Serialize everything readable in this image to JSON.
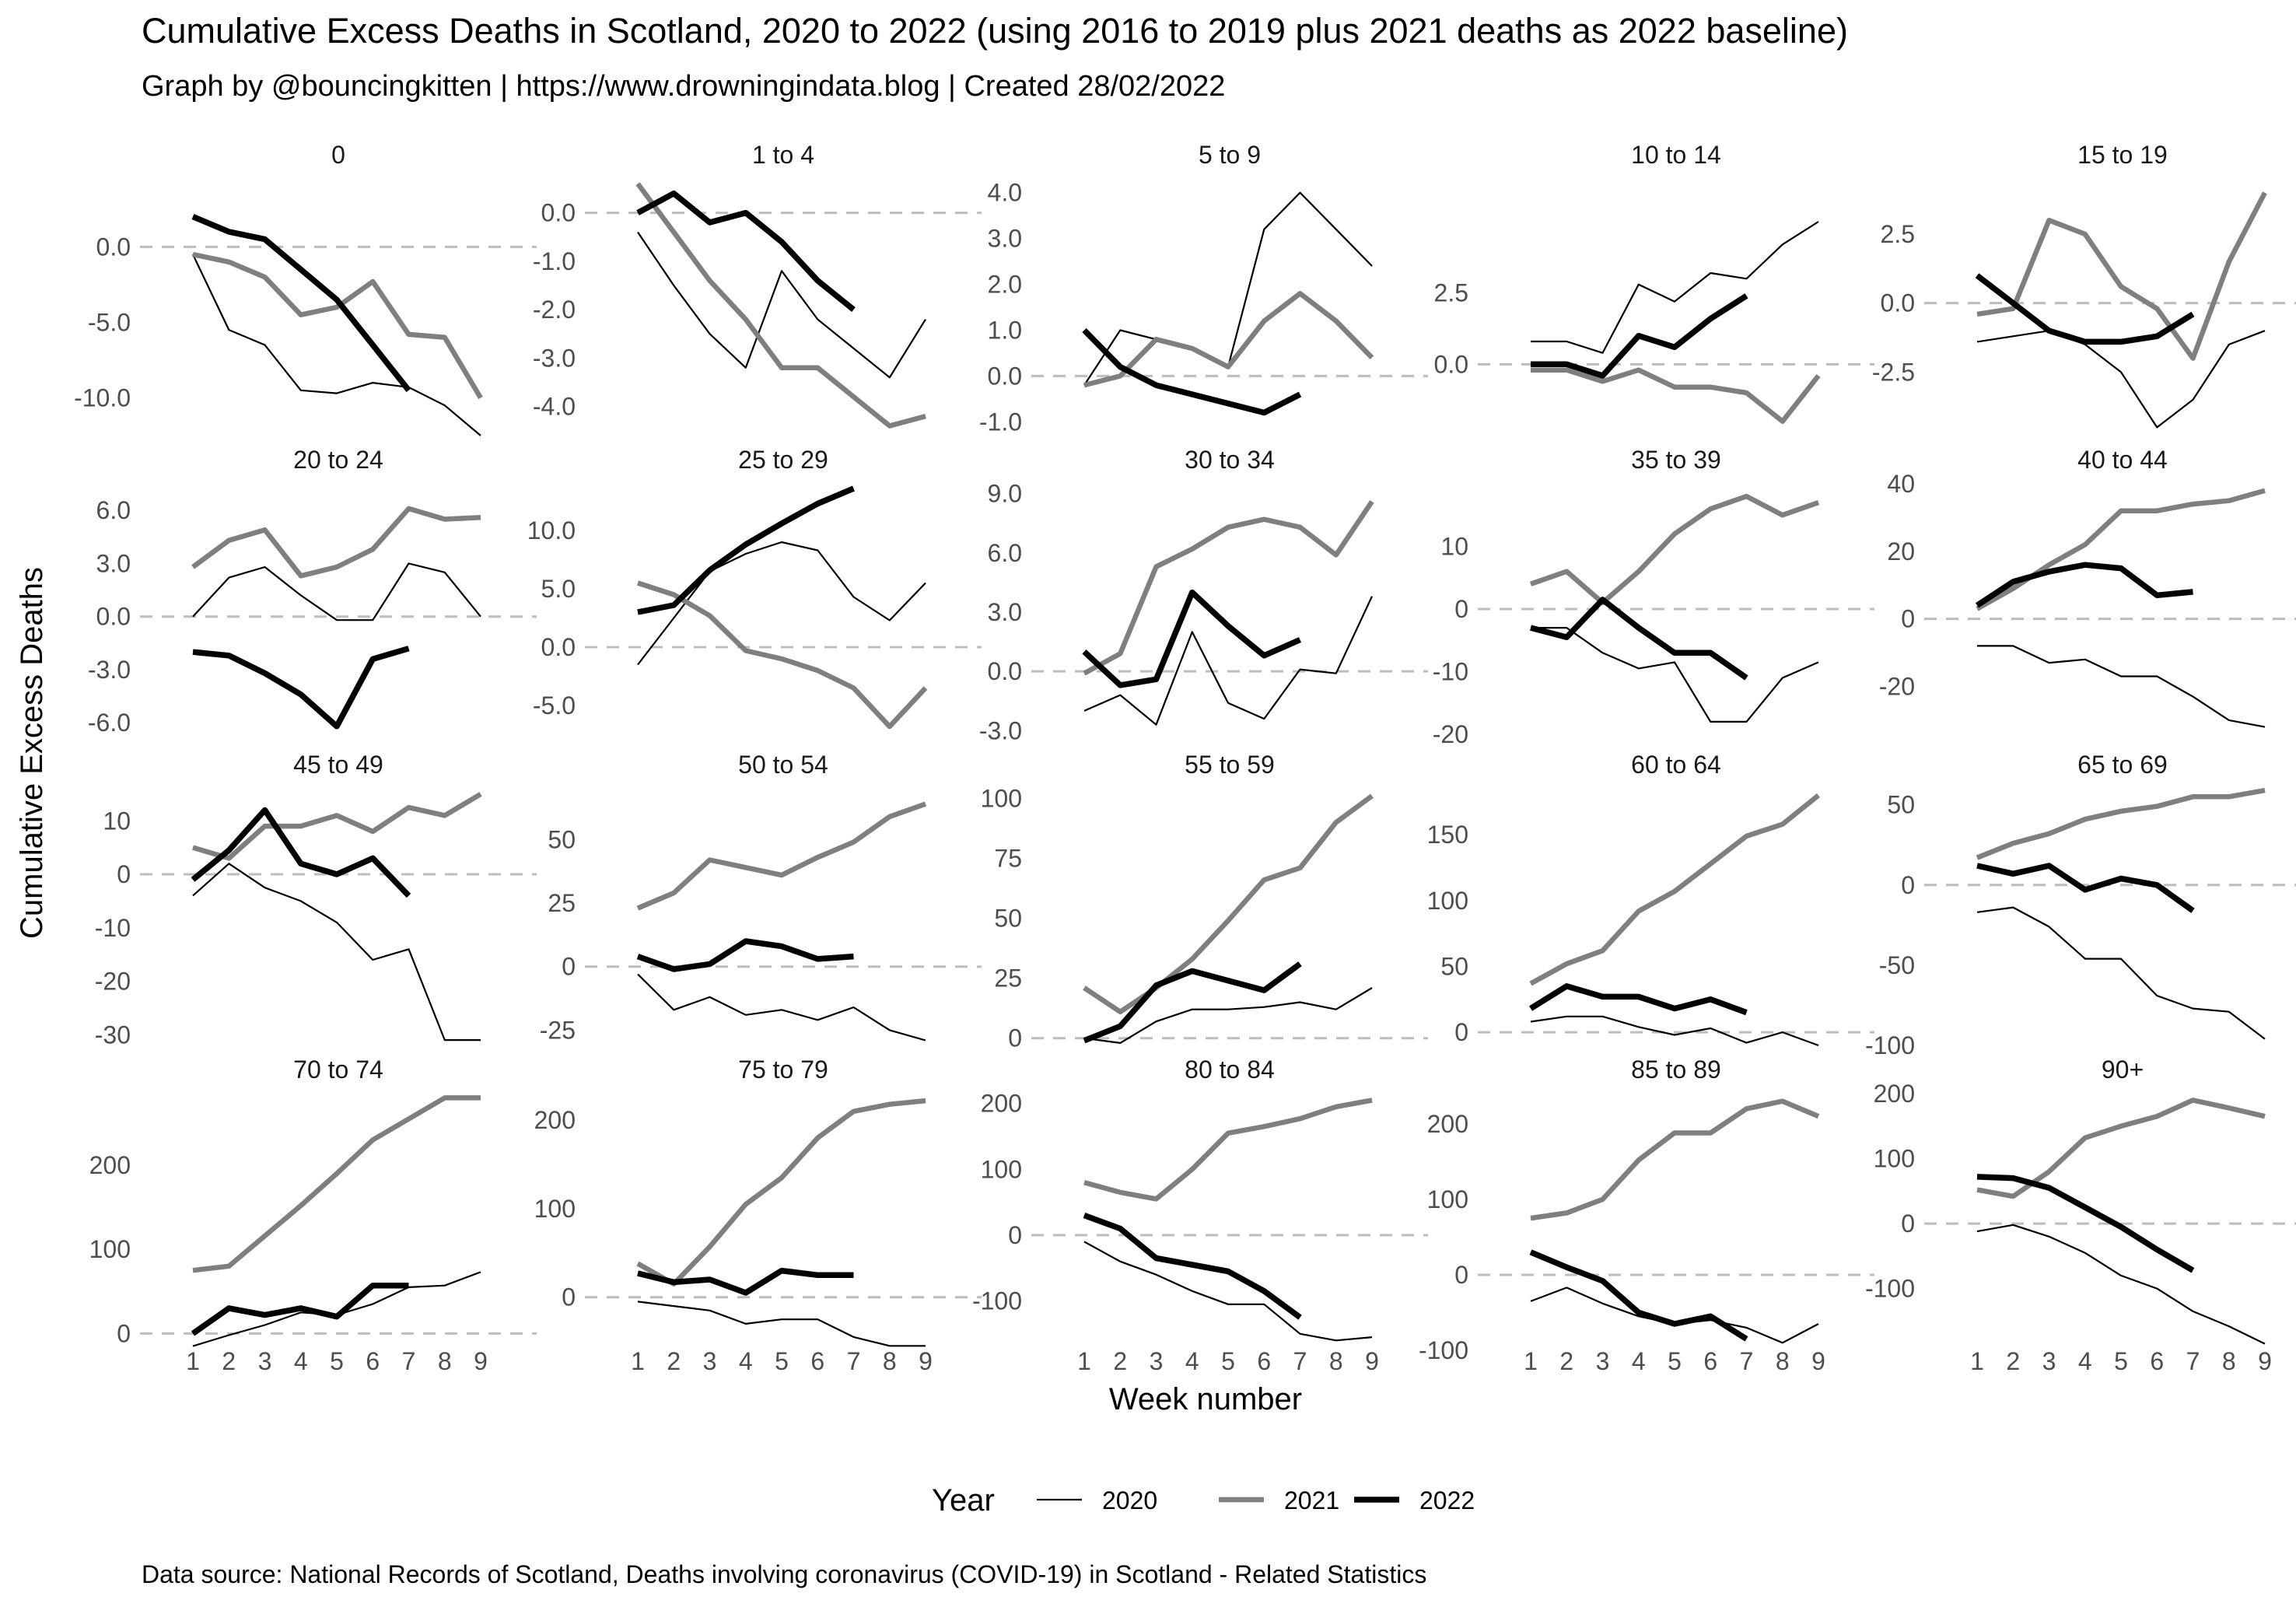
{
  "title": "Cumulative Excess Deaths in Scotland, 2020 to 2022 (using 2016 to 2019 plus 2021 deaths as 2022 baseline)",
  "subtitle": "Graph by @bouncingkitten | https://www.drowningindata.blog |  Created  28/02/2022",
  "caption": "Data source: National Records of Scotland, Deaths involving coronavirus (COVID-19) in Scotland - Related Statistics",
  "chart_data": {
    "type": "line",
    "xlabel": "Week number",
    "ylabel": "Cumulative Excess Deaths",
    "x": [
      1,
      2,
      3,
      4,
      5,
      6,
      7,
      8,
      9
    ],
    "legend": {
      "title": "Year",
      "position": "bottom",
      "entries": [
        "2020",
        "2021",
        "2022"
      ]
    },
    "series_colors": {
      "2020": "#000000",
      "2021": "#7f7f7f",
      "2022": "#000000"
    },
    "series_widths": {
      "2020": "thin",
      "2021": "thick",
      "2022": "thickest"
    },
    "grid": false,
    "reference_line": {
      "y": 0,
      "style": "dashed",
      "color": "#bdbdbd"
    },
    "panels": [
      {
        "label": "0",
        "ylim": [
          -12.5,
          4.5
        ],
        "yticks": [
          0,
          -5,
          -10
        ],
        "ytick_labels": [
          "0.0",
          "-5.0",
          "-10.0"
        ],
        "series": {
          "2020": [
            -0.5,
            -5.5,
            -6.5,
            -9.5,
            -9.7,
            -9,
            -9.3,
            -10.5,
            -12.5
          ],
          "2021": [
            -0.5,
            -1,
            -2,
            -4.5,
            -4,
            -2.3,
            -5.8,
            -6,
            -10
          ],
          "2022": [
            2,
            1,
            0.5,
            -1.5,
            -3.5,
            -6.5,
            -9.5
          ]
        }
      },
      {
        "label": "1 to 4",
        "ylim": [
          -4.6,
          0.7
        ],
        "yticks": [
          0,
          -1,
          -2,
          -3,
          -4
        ],
        "ytick_labels": [
          "0.0",
          "-1.0",
          "-2.0",
          "-3.0",
          "-4.0"
        ],
        "series": {
          "2020": [
            -0.4,
            -1.5,
            -2.5,
            -3.2,
            -1.2,
            -2.2,
            -2.8,
            -3.4,
            -2.2
          ],
          "2021": [
            0.6,
            -0.4,
            -1.4,
            -2.2,
            -3.2,
            -3.2,
            -3.8,
            -4.4,
            -4.2
          ],
          "2022": [
            0,
            0.4,
            -0.2,
            0,
            -0.6,
            -1.4,
            -2
          ]
        }
      },
      {
        "label": "5 to 9",
        "ylim": [
          -1.3,
          4.3
        ],
        "yticks": [
          4,
          3,
          2,
          1,
          0,
          -1
        ],
        "ytick_labels": [
          "4.0",
          "3.0",
          "2.0",
          "1.0",
          "0.0",
          "-1.0"
        ],
        "series": {
          "2020": [
            -0.2,
            1,
            0.8,
            0.6,
            0.2,
            3.2,
            4,
            3.2,
            2.4
          ],
          "2021": [
            -0.2,
            0,
            0.8,
            0.6,
            0.2,
            1.2,
            1.8,
            1.2,
            0.4
          ],
          "2022": [
            1,
            0.2,
            -0.2,
            -0.4,
            -0.6,
            -0.8,
            -0.4
          ]
        }
      },
      {
        "label": "10 to 14",
        "ylim": [
          -2.5,
          6.5
        ],
        "yticks": [
          2.5,
          0
        ],
        "ytick_labels": [
          "2.5",
          "0.0"
        ],
        "series": {
          "2020": [
            0.8,
            0.8,
            0.4,
            2.8,
            2.2,
            3.2,
            3,
            4.2,
            5
          ],
          "2021": [
            -0.2,
            -0.2,
            -0.6,
            -0.2,
            -0.8,
            -0.8,
            -1,
            -2,
            -0.4
          ],
          "2022": [
            0,
            0,
            -0.4,
            1,
            0.6,
            1.6,
            2.4
          ]
        }
      },
      {
        "label": "15 to 19",
        "ylim": [
          -4.8,
          4.5
        ],
        "yticks": [
          2.5,
          0,
          -2.5
        ],
        "ytick_labels": [
          "2.5",
          "0.0",
          "-2.5"
        ],
        "series": {
          "2020": [
            -1.4,
            -1.2,
            -1,
            -1.5,
            -2.5,
            -4.5,
            -3.5,
            -1.5,
            -1
          ],
          "2021": [
            -0.4,
            -0.2,
            3,
            2.5,
            0.6,
            -0.2,
            -2,
            1.5,
            4
          ],
          "2022": [
            1,
            0,
            -1,
            -1.4,
            -1.4,
            -1.2,
            -0.4
          ]
        }
      },
      {
        "label": "20 to 24",
        "ylim": [
          -7,
          7.5
        ],
        "yticks": [
          6,
          3,
          0,
          -3,
          -6
        ],
        "ytick_labels": [
          "6.0",
          "3.0",
          "0.0",
          "-3.0",
          "-6.0"
        ],
        "series": {
          "2020": [
            0,
            2.2,
            2.8,
            1.2,
            -0.2,
            -0.2,
            3,
            2.5,
            0
          ],
          "2021": [
            2.8,
            4.3,
            4.9,
            2.3,
            2.8,
            3.8,
            6.1,
            5.5,
            5.6
          ],
          "2022": [
            -2,
            -2.2,
            -3.2,
            -4.4,
            -6.2,
            -2.4,
            -1.8
          ]
        }
      },
      {
        "label": "25 to 29",
        "ylim": [
          -8,
          14
        ],
        "yticks": [
          10,
          5,
          0,
          -5
        ],
        "ytick_labels": [
          "10.0",
          "5.0",
          "0.0",
          "-5.0"
        ],
        "series": {
          "2020": [
            -1.5,
            2.5,
            6.5,
            8,
            9,
            8.3,
            4.3,
            2.3,
            5.5
          ],
          "2021": [
            5.5,
            4.5,
            2.7,
            -0.3,
            -1,
            -2,
            -3.5,
            -6.8,
            -3.5
          ],
          "2022": [
            3,
            3.6,
            6.6,
            8.8,
            10.6,
            12.3,
            13.6
          ]
        }
      },
      {
        "label": "30 to 34",
        "ylim": [
          -3.5,
          9.5
        ],
        "yticks": [
          9,
          6,
          3,
          0,
          -3
        ],
        "ytick_labels": [
          "9.0",
          "6.0",
          "3.0",
          "0.0",
          "-3.0"
        ],
        "series": {
          "2020": [
            -2,
            -1.2,
            -2.7,
            2,
            -1.6,
            -2.4,
            0.1,
            -0.1,
            3.8
          ],
          "2021": [
            -0.1,
            0.9,
            5.3,
            6.2,
            7.3,
            7.7,
            7.3,
            5.9,
            8.6
          ],
          "2022": [
            1,
            -0.7,
            -0.4,
            4,
            2.3,
            0.8,
            1.6
          ]
        }
      },
      {
        "label": "35 to 39",
        "ylim": [
          -21,
          20
        ],
        "yticks": [
          10,
          0,
          -10,
          -20
        ],
        "ytick_labels": [
          "10",
          "0",
          "-10",
          "-20"
        ],
        "series": {
          "2020": [
            -3,
            -3,
            -7,
            -9.5,
            -8.5,
            -18,
            -18,
            -11,
            -8.5
          ],
          "2021": [
            4,
            6,
            1,
            6,
            12,
            16,
            18,
            15,
            17
          ],
          "2022": [
            -3,
            -4.5,
            1.5,
            -3,
            -7,
            -7,
            -11
          ]
        }
      },
      {
        "label": "40 to 44",
        "ylim": [
          -36,
          40
        ],
        "yticks": [
          40,
          20,
          0,
          -20
        ],
        "ytick_labels": [
          "40",
          "20",
          "0",
          "-20"
        ],
        "series": {
          "2020": [
            -8,
            -8,
            -13,
            -12,
            -17,
            -17,
            -23,
            -30,
            -32
          ],
          "2021": [
            3,
            9,
            16,
            22,
            32,
            32,
            34,
            35,
            38
          ],
          "2022": [
            4,
            11,
            14,
            16,
            15,
            7,
            8
          ]
        }
      },
      {
        "label": "45 to 49",
        "ylim": [
          -32,
          16
        ],
        "yticks": [
          10,
          0,
          -10,
          -20,
          -30
        ],
        "ytick_labels": [
          "10",
          "0",
          "-10",
          "-20",
          "-30"
        ],
        "series": {
          "2020": [
            -4,
            2,
            -2.5,
            -5,
            -9,
            -16,
            -14,
            -31,
            -31
          ],
          "2021": [
            5,
            3,
            9,
            9,
            11,
            8,
            12.5,
            11,
            15
          ],
          "2022": [
            -1,
            4.5,
            12,
            2,
            0,
            3,
            -4
          ]
        }
      },
      {
        "label": "50 to 54",
        "ylim": [
          -31,
          70
        ],
        "yticks": [
          50,
          25,
          0,
          -25
        ],
        "ytick_labels": [
          "50",
          "25",
          "0",
          "-25"
        ],
        "series": {
          "2020": [
            -3,
            -17,
            -12,
            -19,
            -17,
            -21,
            -16,
            -25,
            -29
          ],
          "2021": [
            23,
            29,
            42,
            39,
            36,
            43,
            49,
            59,
            64
          ],
          "2022": [
            4,
            -1,
            1,
            10,
            8,
            3,
            4
          ]
        }
      },
      {
        "label": "55 to 59",
        "ylim": [
          -3,
          104
        ],
        "yticks": [
          100,
          75,
          50,
          25,
          0
        ],
        "ytick_labels": [
          "100",
          "75",
          "50",
          "25",
          "0"
        ],
        "series": {
          "2020": [
            0,
            -2,
            7,
            12,
            12,
            13,
            15,
            12,
            21
          ],
          "2021": [
            21,
            11,
            21,
            33,
            49,
            66,
            71,
            90,
            101
          ],
          "2022": [
            -1,
            5,
            22,
            28,
            24,
            20,
            31
          ]
        }
      },
      {
        "label": "60 to 64",
        "ylim": [
          -10,
          185
        ],
        "yticks": [
          150,
          100,
          50,
          0
        ],
        "ytick_labels": [
          "150",
          "100",
          "50",
          "0"
        ],
        "series": {
          "2020": [
            8,
            12,
            12,
            4,
            -2,
            3,
            -8,
            0,
            -10
          ],
          "2021": [
            37,
            52,
            62,
            92,
            107,
            128,
            149,
            158,
            180
          ],
          "2022": [
            18,
            35,
            27,
            27,
            18,
            25,
            15
          ]
        }
      },
      {
        "label": "65 to 69",
        "ylim": [
          -100,
          60
        ],
        "yticks": [
          50,
          0,
          -50,
          -100
        ],
        "ytick_labels": [
          "50",
          "0",
          "-50",
          "-100"
        ],
        "series": {
          "2020": [
            -17,
            -14,
            -26,
            -46,
            -46,
            -69,
            -77,
            -79,
            -96
          ],
          "2021": [
            17,
            26,
            32,
            41,
            46,
            49,
            55,
            55,
            59
          ],
          "2022": [
            12,
            7,
            12,
            -3,
            4,
            0,
            -16
          ]
        }
      },
      {
        "label": "70 to 74",
        "ylim": [
          -20,
          285
        ],
        "yticks": [
          200,
          100,
          0
        ],
        "ytick_labels": [
          "200",
          "100",
          "0"
        ],
        "series": {
          "2020": [
            -15,
            -2,
            10,
            25,
            22,
            35,
            55,
            57,
            73
          ],
          "2021": [
            75,
            80,
            116,
            152,
            190,
            230,
            255,
            280,
            280
          ],
          "2022": [
            0,
            30,
            22,
            30,
            20,
            57,
            57
          ]
        }
      },
      {
        "label": "75 to 79",
        "ylim": [
          -60,
          230
        ],
        "yticks": [
          200,
          100,
          0
        ],
        "ytick_labels": [
          "200",
          "100",
          "0"
        ],
        "series": {
          "2020": [
            -5,
            -10,
            -15,
            -30,
            -25,
            -25,
            -45,
            -55,
            -55
          ],
          "2021": [
            38,
            15,
            57,
            105,
            135,
            180,
            210,
            218,
            222
          ],
          "2022": [
            27,
            17,
            20,
            5,
            30,
            25,
            25
          ]
        }
      },
      {
        "label": "80 to 84",
        "ylim": [
          -175,
          215
        ],
        "yticks": [
          200,
          100,
          0,
          -100
        ],
        "ytick_labels": [
          "200",
          "100",
          "0",
          "-100"
        ],
        "series": {
          "2020": [
            -10,
            -40,
            -60,
            -85,
            -105,
            -105,
            -150,
            -160,
            -155
          ],
          "2021": [
            80,
            65,
            55,
            100,
            155,
            165,
            177,
            195,
            205
          ],
          "2022": [
            30,
            10,
            -35,
            -45,
            -55,
            -85,
            -125
          ]
        }
      },
      {
        "label": "85 to 89",
        "ylim": [
          -100,
          240
        ],
        "yticks": [
          200,
          100,
          0,
          -100
        ],
        "ytick_labels": [
          "200",
          "100",
          "0",
          "-100"
        ],
        "series": {
          "2020": [
            -35,
            -17,
            -38,
            -55,
            -65,
            -60,
            -70,
            -90,
            -65
          ],
          "2021": [
            75,
            82,
            100,
            152,
            188,
            188,
            220,
            230,
            210
          ],
          "2022": [
            30,
            10,
            -8,
            -50,
            -65,
            -55,
            -85
          ]
        }
      },
      {
        "label": "90+",
        "ylim": [
          -195,
          200
        ],
        "yticks": [
          200,
          100,
          0,
          -100
        ],
        "ytick_labels": [
          "200",
          "100",
          "0",
          "-100"
        ],
        "series": {
          "2020": [
            -12,
            -2,
            -20,
            -45,
            -80,
            -100,
            -135,
            -158,
            -185
          ],
          "2021": [
            52,
            42,
            80,
            132,
            150,
            165,
            190,
            178,
            165
          ],
          "2022": [
            72,
            70,
            55,
            25,
            -5,
            -40,
            -72
          ]
        }
      }
    ]
  }
}
